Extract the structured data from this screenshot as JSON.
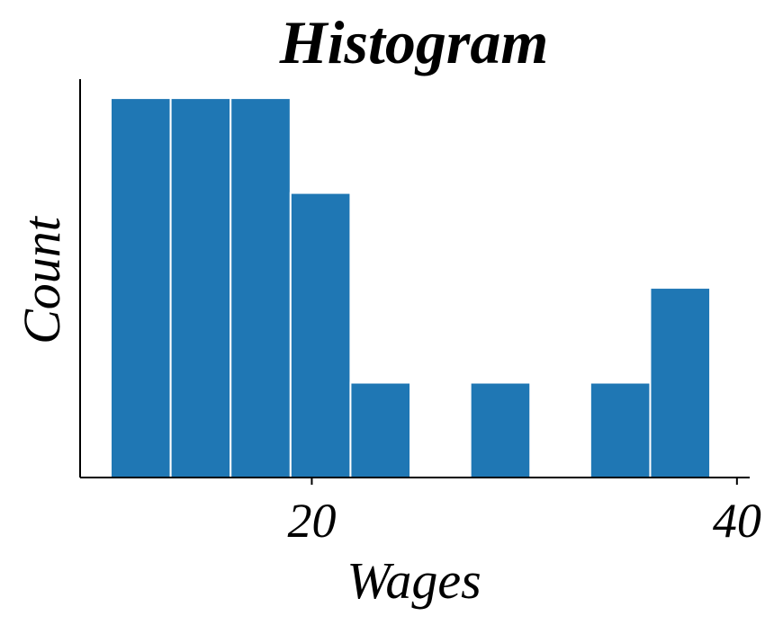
{
  "chart_data": {
    "type": "bar",
    "subtype": "histogram",
    "title": "Histogram",
    "xlabel": "Wages",
    "ylabel": "Count",
    "bin_edges": [
      10.54,
      13.36,
      16.18,
      19.0,
      21.82,
      24.64,
      27.46,
      30.28,
      33.1,
      35.92,
      38.74
    ],
    "counts": [
      4,
      4,
      4,
      3,
      1,
      0,
      1,
      0,
      1,
      2
    ],
    "xlim": [
      9.1,
      40.6
    ],
    "ylim": [
      0,
      4.2
    ],
    "xticks": [
      20,
      40
    ],
    "xtick_labels": [
      "20",
      "40"
    ],
    "yticks_visible": false,
    "bar_color": "#1f77b4",
    "edge_color": "#ffffff",
    "grid": false
  }
}
